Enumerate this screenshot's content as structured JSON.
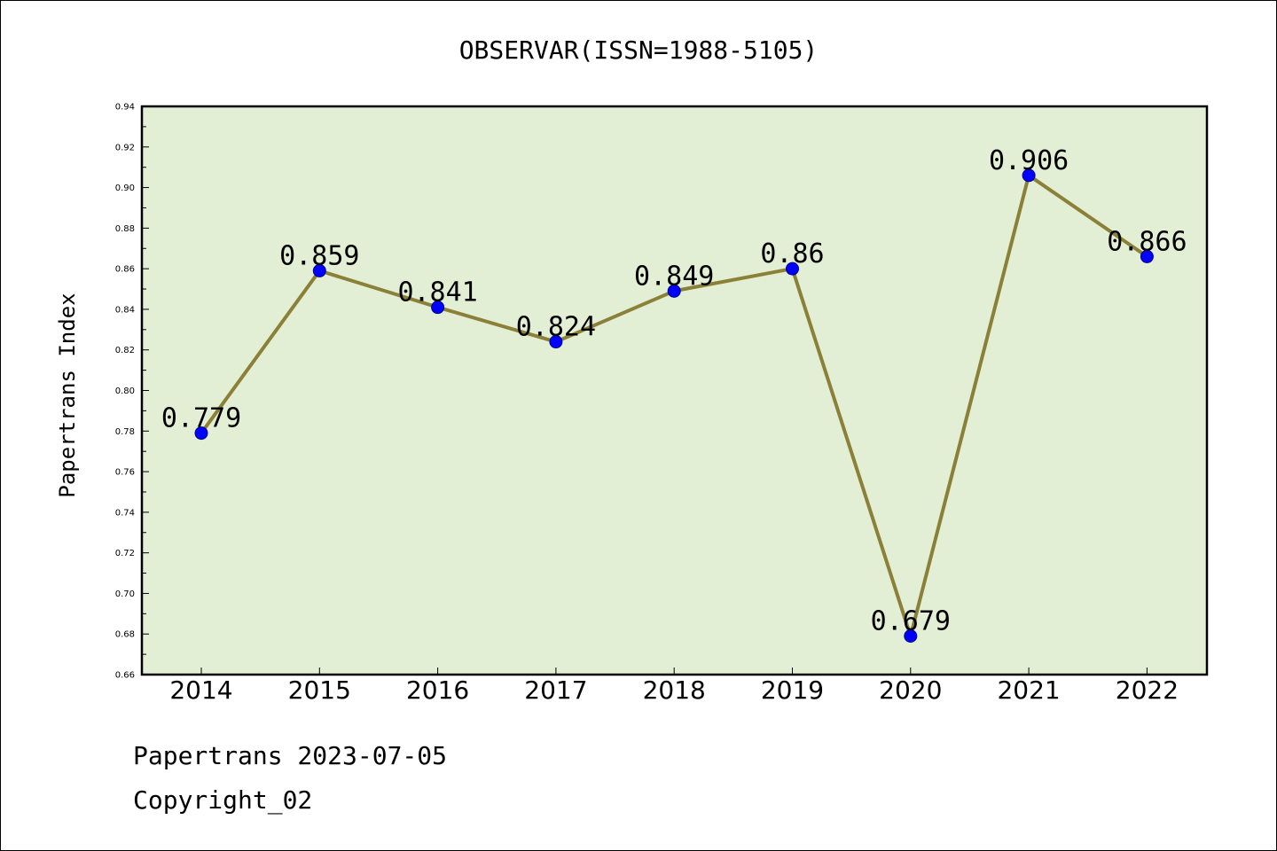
{
  "chart_data": {
    "type": "line",
    "title": "OBSERVAR(ISSN=1988-5105)",
    "xlabel": "",
    "ylabel": "Papertrans Index",
    "categories": [
      "2014",
      "2015",
      "2016",
      "2017",
      "2018",
      "2019",
      "2020",
      "2021",
      "2022"
    ],
    "values": [
      0.779,
      0.859,
      0.841,
      0.824,
      0.849,
      0.86,
      0.679,
      0.906,
      0.866
    ],
    "data_labels": [
      "0.779",
      "0.859",
      "0.841",
      "0.824",
      "0.849",
      "0.86",
      "0.679",
      "0.906",
      "0.866"
    ],
    "ylim": [
      0.66,
      0.94
    ],
    "yticks": [
      "0.66",
      "0.68",
      "0.70",
      "0.72",
      "0.74",
      "0.76",
      "0.78",
      "0.80",
      "0.82",
      "0.84",
      "0.86",
      "0.88",
      "0.90",
      "0.92",
      "0.94"
    ],
    "grid": false,
    "legend": "none",
    "colors": {
      "plot_background": "#e2efd5",
      "line": "#8b8038",
      "marker": "#0000ff"
    }
  },
  "footer": {
    "line1": "Papertrans 2023-07-05",
    "line2": "Copyright_02"
  }
}
